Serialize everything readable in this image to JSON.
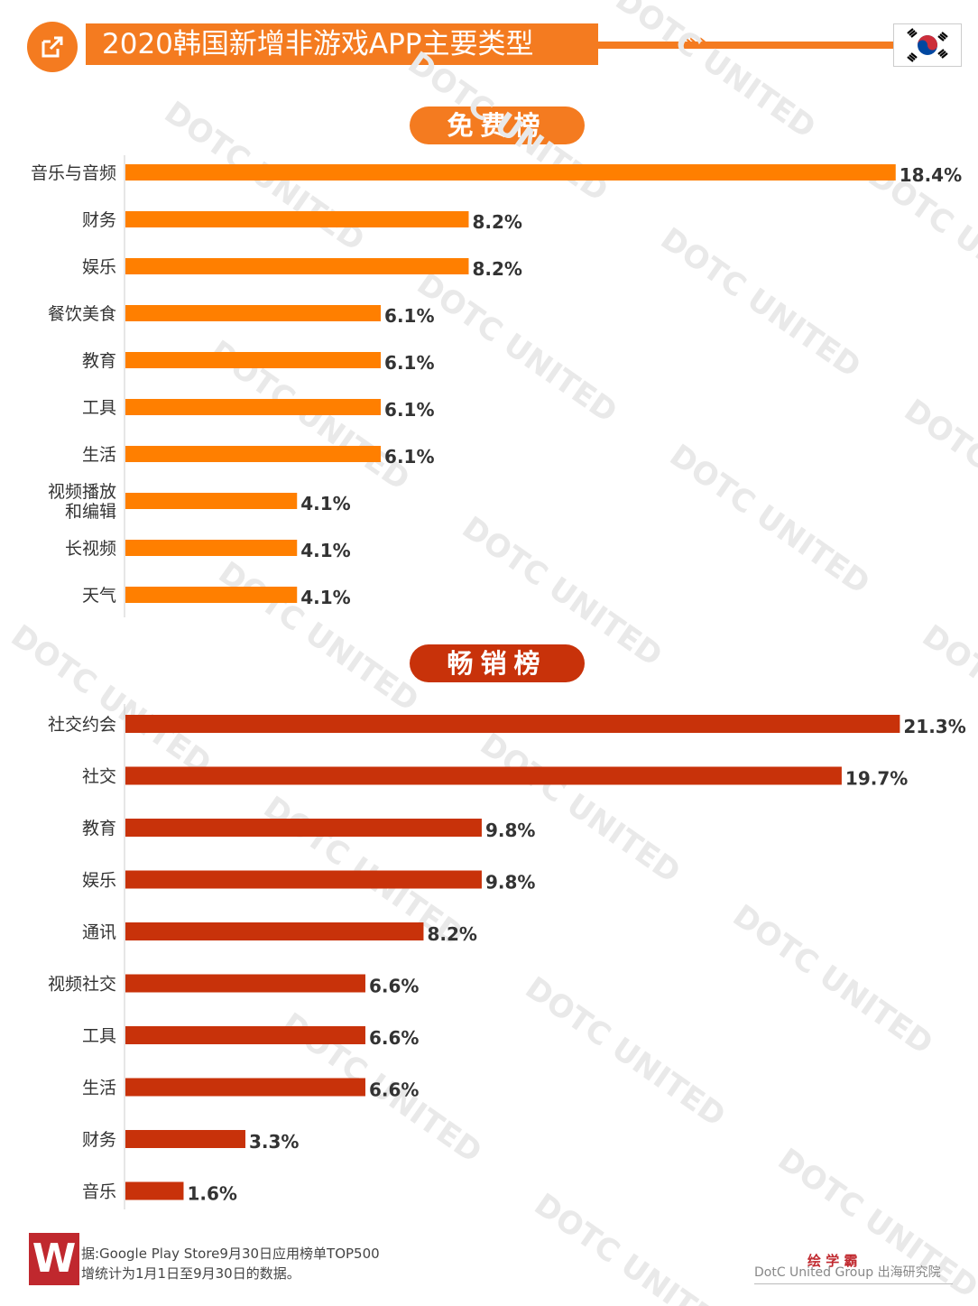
{
  "header": {
    "title": "2020韩国新增非游戏APP主要类型",
    "chevrons": "»»",
    "icon": "share-export-icon",
    "flag": "south-korea-flag-icon",
    "accent": "#f47b20"
  },
  "chart_data": [
    {
      "type": "bar",
      "orientation": "horizontal",
      "title": "免费榜",
      "color": "#ff7f00",
      "categories": [
        "音乐与音频",
        "财务",
        "娱乐",
        "餐饮美食",
        "教育",
        "工具",
        "生活",
        "视频播放和编辑",
        "长视频",
        "天气"
      ],
      "category_lines": [
        [
          "音乐与音频"
        ],
        [
          "财务"
        ],
        [
          "娱乐"
        ],
        [
          "餐饮美食"
        ],
        [
          "教育"
        ],
        [
          "工具"
        ],
        [
          "生活"
        ],
        [
          "视频播放",
          "和编辑"
        ],
        [
          "长视频"
        ],
        [
          "天气"
        ]
      ],
      "values": [
        18.4,
        8.2,
        8.2,
        6.1,
        6.1,
        6.1,
        6.1,
        4.1,
        4.1,
        4.1
      ],
      "value_labels": [
        "18.4%",
        "8.2%",
        "8.2%",
        "6.1%",
        "6.1%",
        "6.1%",
        "6.1%",
        "4.1%",
        "4.1%",
        "4.1%"
      ],
      "unit": "%"
    },
    {
      "type": "bar",
      "orientation": "horizontal",
      "title": "畅销榜",
      "color": "#c8320a",
      "categories": [
        "社交约会",
        "社交",
        "教育",
        "娱乐",
        "通讯",
        "视频社交",
        "工具",
        "生活",
        "财务",
        "音乐"
      ],
      "category_lines": [
        [
          "社交约会"
        ],
        [
          "社交"
        ],
        [
          "教育"
        ],
        [
          "娱乐"
        ],
        [
          "通讯"
        ],
        [
          "视频社交"
        ],
        [
          "工具"
        ],
        [
          "生活"
        ],
        [
          "财务"
        ],
        [
          "音乐"
        ]
      ],
      "values": [
        21.3,
        19.7,
        9.8,
        9.8,
        8.2,
        6.6,
        6.6,
        6.6,
        3.3,
        1.6
      ],
      "value_labels": [
        "21.3%",
        "19.7%",
        "9.8%",
        "9.8%",
        "8.2%",
        "6.6%",
        "6.6%",
        "6.6%",
        "3.3%",
        "1.6%"
      ],
      "unit": "%"
    }
  ],
  "footer": {
    "logo": "W",
    "source_line1": "据:Google Play Store9月30日应用榜单TOP500",
    "source_line2": "增统计为1月1日至9月30日的数据。",
    "brand": "绘 学 霸",
    "credit": "DotC United Group 出海研究院"
  },
  "watermark": "DOTC UNITED",
  "colors": {
    "free": "#ff7f00",
    "paid": "#c8320a",
    "logo": "#c0282e"
  }
}
